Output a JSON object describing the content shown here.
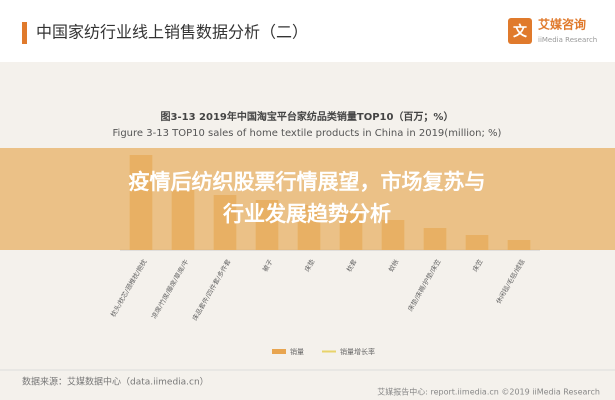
{
  "header": {
    "title": "中国家纺行业线上销售数据分析（二）",
    "logo_name": "艾媒咨询",
    "logo_sub": "iiMedia Research"
  },
  "chart_data": {
    "type": "bar",
    "title": "图3-13 2019年中国淘宝平台家纺品类销量TOP10（百万；%）",
    "subtitle": "Figure 3-13 TOP10 sales of home textile products in China in 2019(million; %)",
    "categories": [
      "枕头/枕芯/颈椎枕/抱枕",
      "凉席/竹席/藤席/草席/牛",
      "床品套件/四件套/多件套",
      "被子",
      "床垫",
      "枕套",
      "蚊帐",
      "床垫/床褥/护垫/床笠",
      "床笠",
      "休闲毯/毛毯/绒毯"
    ],
    "series": [
      {
        "name": "销量",
        "color": "#e8a550",
        "values": [
          95,
          60,
          55,
          50,
          45,
          40,
          30,
          22,
          15,
          10
        ]
      },
      {
        "name": "销量增长率",
        "color": "#e8d36a",
        "values": [
          null,
          null,
          null,
          null,
          null,
          null,
          null,
          null,
          null,
          null
        ]
      }
    ],
    "ylim": [
      0,
      100
    ]
  },
  "overlay": {
    "lines": [
      "疫情后纺织股票行情展望，市场复苏与",
      "行业发展趋势分析"
    ]
  },
  "footer": {
    "source": "数据来源：艾媒数据中心（data.iimedia.cn）",
    "copyright": "艾媒报告中心: report.iimedia.cn  ©2019  iiMedia Research"
  }
}
